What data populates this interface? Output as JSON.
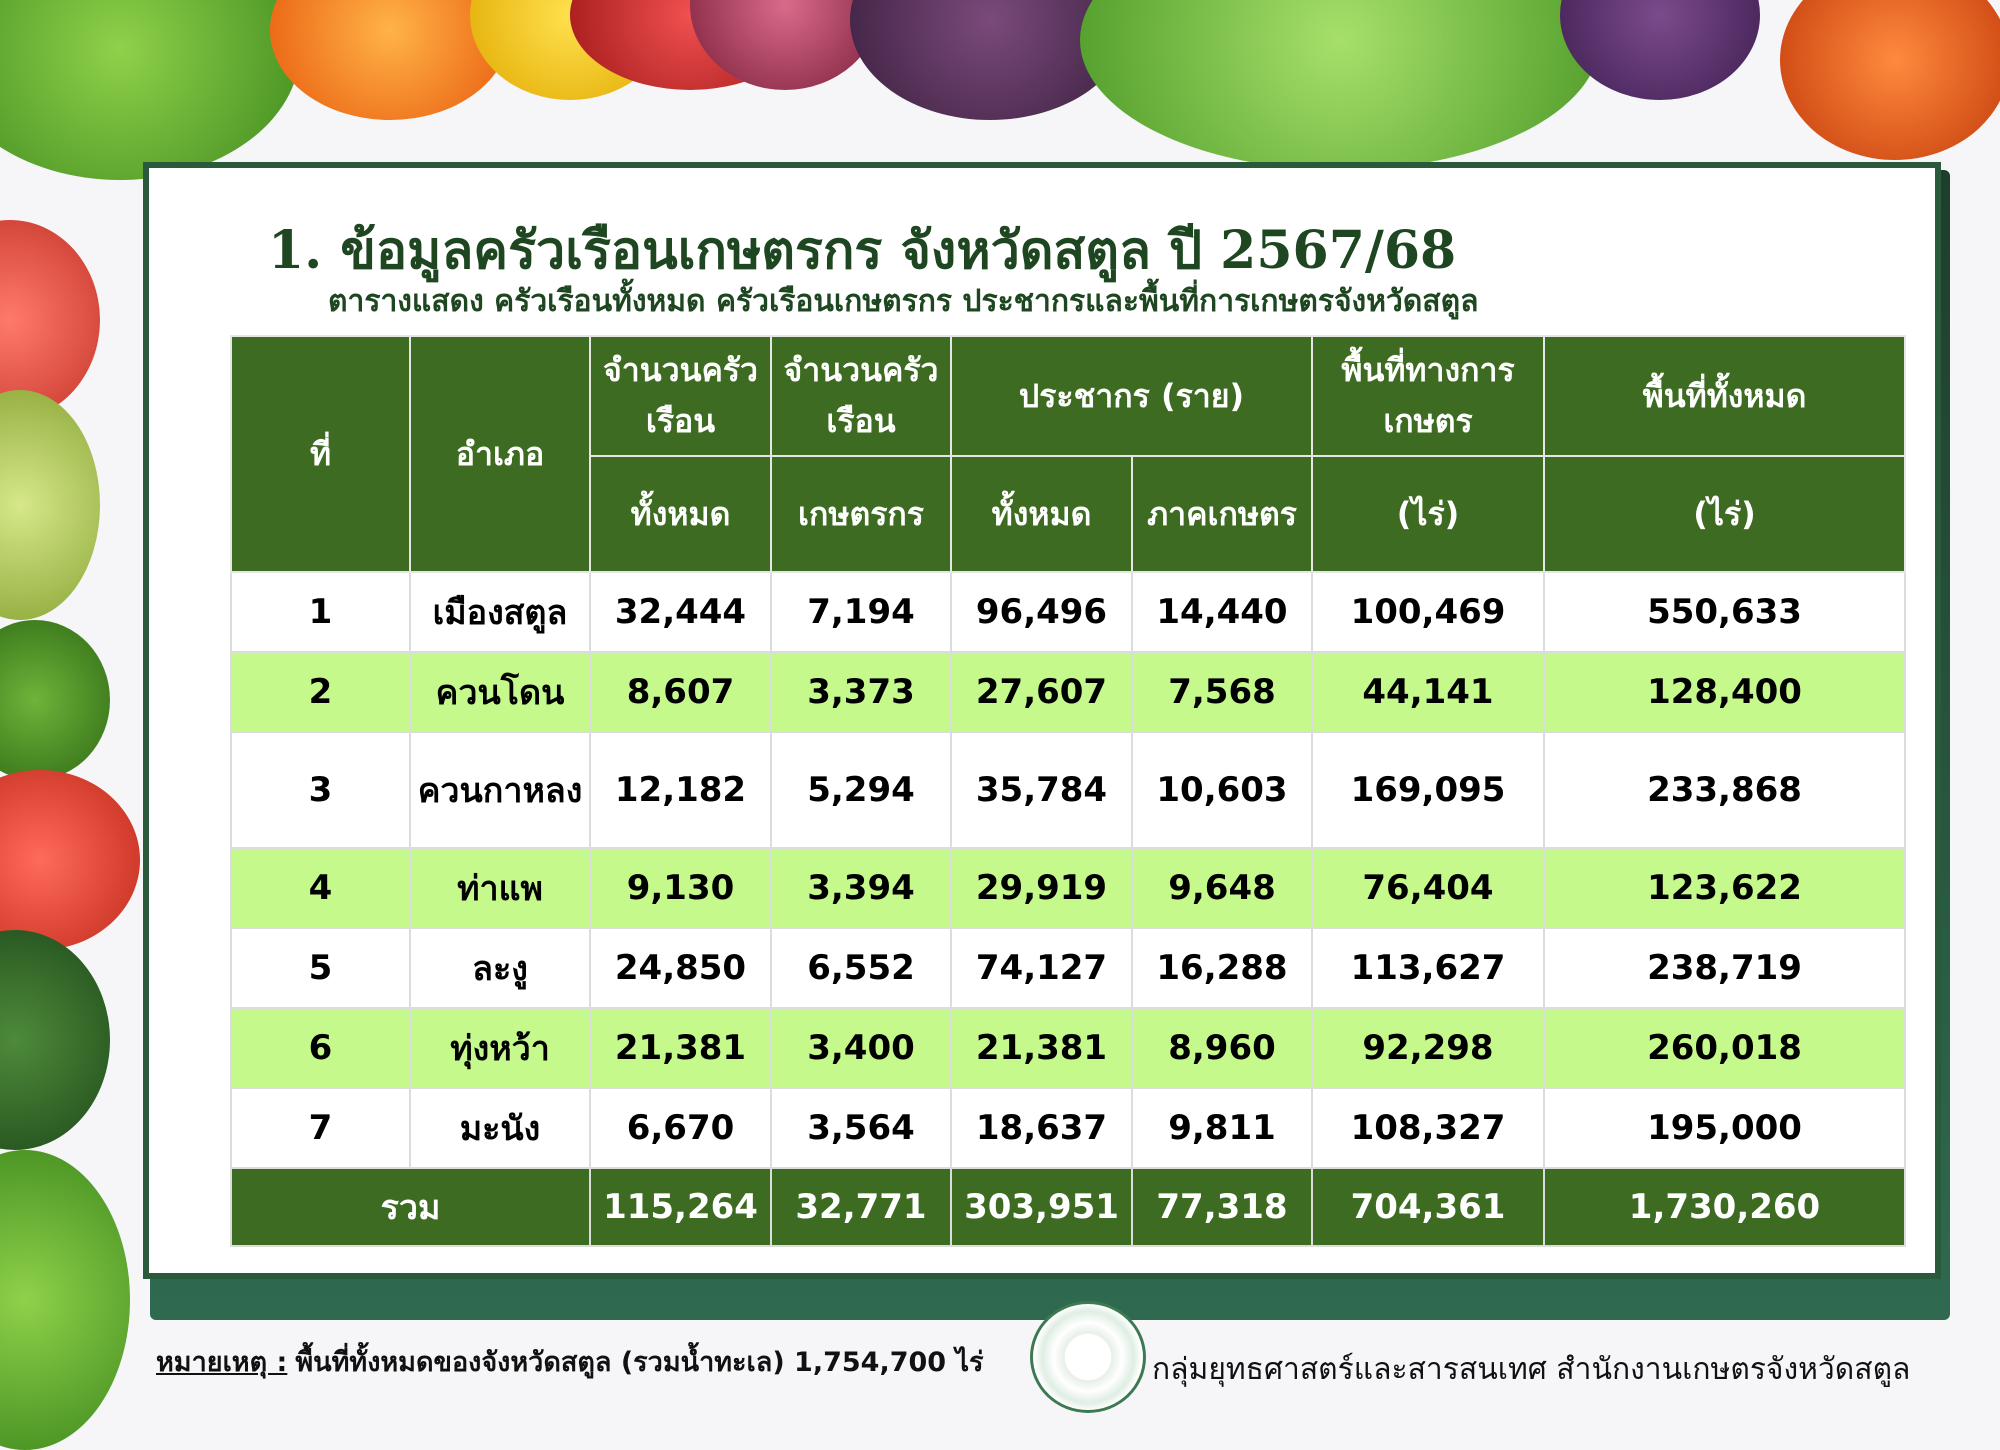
{
  "title": "1. ข้อมูลครัวเรือนเกษตรกร จังหวัดสตูล ปี 2567/68",
  "subtitle": "ตารางแสดง ครัวเรือนทั้งหมด ครัวเรือนเกษตรกร ประชากรและพื้นที่การเกษตรจังหวัดสตูล",
  "table": {
    "headers": {
      "no": "ที่",
      "district": "อำเภอ",
      "hh_total_top": "จำนวนครัวเรือน",
      "hh_total_bottom": "ทั้งหมด",
      "hh_farm_top": "จำนวนครัวเรือน",
      "hh_farm_bottom": "เกษตรกร",
      "population": "ประชากร (ราย)",
      "pop_total": "ทั้งหมด",
      "pop_farm": "ภาคเกษตร",
      "farm_area_top": "พื้นที่ทางการเกษตร",
      "farm_area_unit": "(ไร่)",
      "total_area_top": "พื้นที่ทั้งหมด",
      "total_area_unit": "(ไร่)"
    },
    "rows": [
      [
        "1",
        "เมืองสตูล",
        "32,444",
        "7,194",
        "96,496",
        "14,440",
        "100,469",
        "550,633"
      ],
      [
        "2",
        "ควนโดน",
        "8,607",
        "3,373",
        "27,607",
        "7,568",
        "44,141",
        "128,400"
      ],
      [
        "3",
        "ควนกาหลง",
        "12,182",
        "5,294",
        "35,784",
        "10,603",
        "169,095",
        "233,868"
      ],
      [
        "4",
        "ท่าแพ",
        "9,130",
        "3,394",
        "29,919",
        "9,648",
        "76,404",
        "123,622"
      ],
      [
        "5",
        "ละงู",
        "24,850",
        "6,552",
        "74,127",
        "16,288",
        "113,627",
        "238,719"
      ],
      [
        "6",
        "ทุ่งหว้า",
        "21,381",
        "3,400",
        "21,381",
        "8,960",
        "92,298",
        "260,018"
      ],
      [
        "7",
        "มะนัง",
        "6,670",
        "3,564",
        "18,637",
        "9,811",
        "108,327",
        "195,000"
      ]
    ],
    "total": [
      "รวม",
      "115,264",
      "32,771",
      "303,951",
      "77,318",
      "704,361",
      "1,730,260"
    ]
  },
  "footer": {
    "note_label": "หมายเหตุ :",
    "note_text": "พื้นที่ทั้งหมดของจังหวัดสตูล (รวมน้ำทะเล) 1,754,700 ไร่",
    "org": "กลุ่มยุทธศาสตร์และสารสนเทศ  สำนักงานเกษตรจังหวัดสตูล"
  },
  "colors": {
    "header_green": "#3d6b22",
    "row_highlight": "#c5f98b",
    "title_green": "#1e4620"
  }
}
